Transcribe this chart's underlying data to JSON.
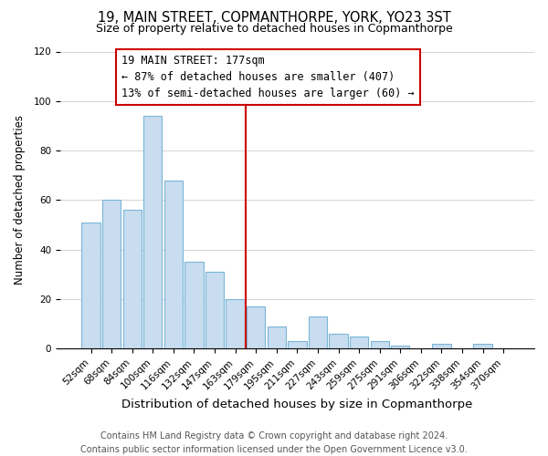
{
  "title": "19, MAIN STREET, COPMANTHORPE, YORK, YO23 3ST",
  "subtitle": "Size of property relative to detached houses in Copmanthorpe",
  "xlabel": "Distribution of detached houses by size in Copmanthorpe",
  "ylabel": "Number of detached properties",
  "bar_labels": [
    "52sqm",
    "68sqm",
    "84sqm",
    "100sqm",
    "116sqm",
    "132sqm",
    "147sqm",
    "163sqm",
    "179sqm",
    "195sqm",
    "211sqm",
    "227sqm",
    "243sqm",
    "259sqm",
    "275sqm",
    "291sqm",
    "306sqm",
    "322sqm",
    "338sqm",
    "354sqm",
    "370sqm"
  ],
  "bar_values": [
    51,
    60,
    56,
    94,
    68,
    35,
    31,
    20,
    17,
    9,
    3,
    13,
    6,
    5,
    3,
    1,
    0,
    2,
    0,
    2,
    0
  ],
  "bar_color": "#c8ddef",
  "bar_edge_color": "#7ab5d8",
  "vline_color": "#cc0000",
  "ylim": [
    0,
    120
  ],
  "yticks": [
    0,
    20,
    40,
    60,
    80,
    100,
    120
  ],
  "annotation_title": "19 MAIN STREET: 177sqm",
  "annotation_line1": "← 87% of detached houses are smaller (407)",
  "annotation_line2": "13% of semi-detached houses are larger (60) →",
  "footer1": "Contains HM Land Registry data © Crown copyright and database right 2024.",
  "footer2": "Contains public sector information licensed under the Open Government Licence v3.0.",
  "title_fontsize": 10.5,
  "subtitle_fontsize": 9,
  "xlabel_fontsize": 9.5,
  "ylabel_fontsize": 8.5,
  "tick_fontsize": 7.5,
  "annot_fontsize": 8.5,
  "footer_fontsize": 7,
  "vline_bar_index": 8
}
